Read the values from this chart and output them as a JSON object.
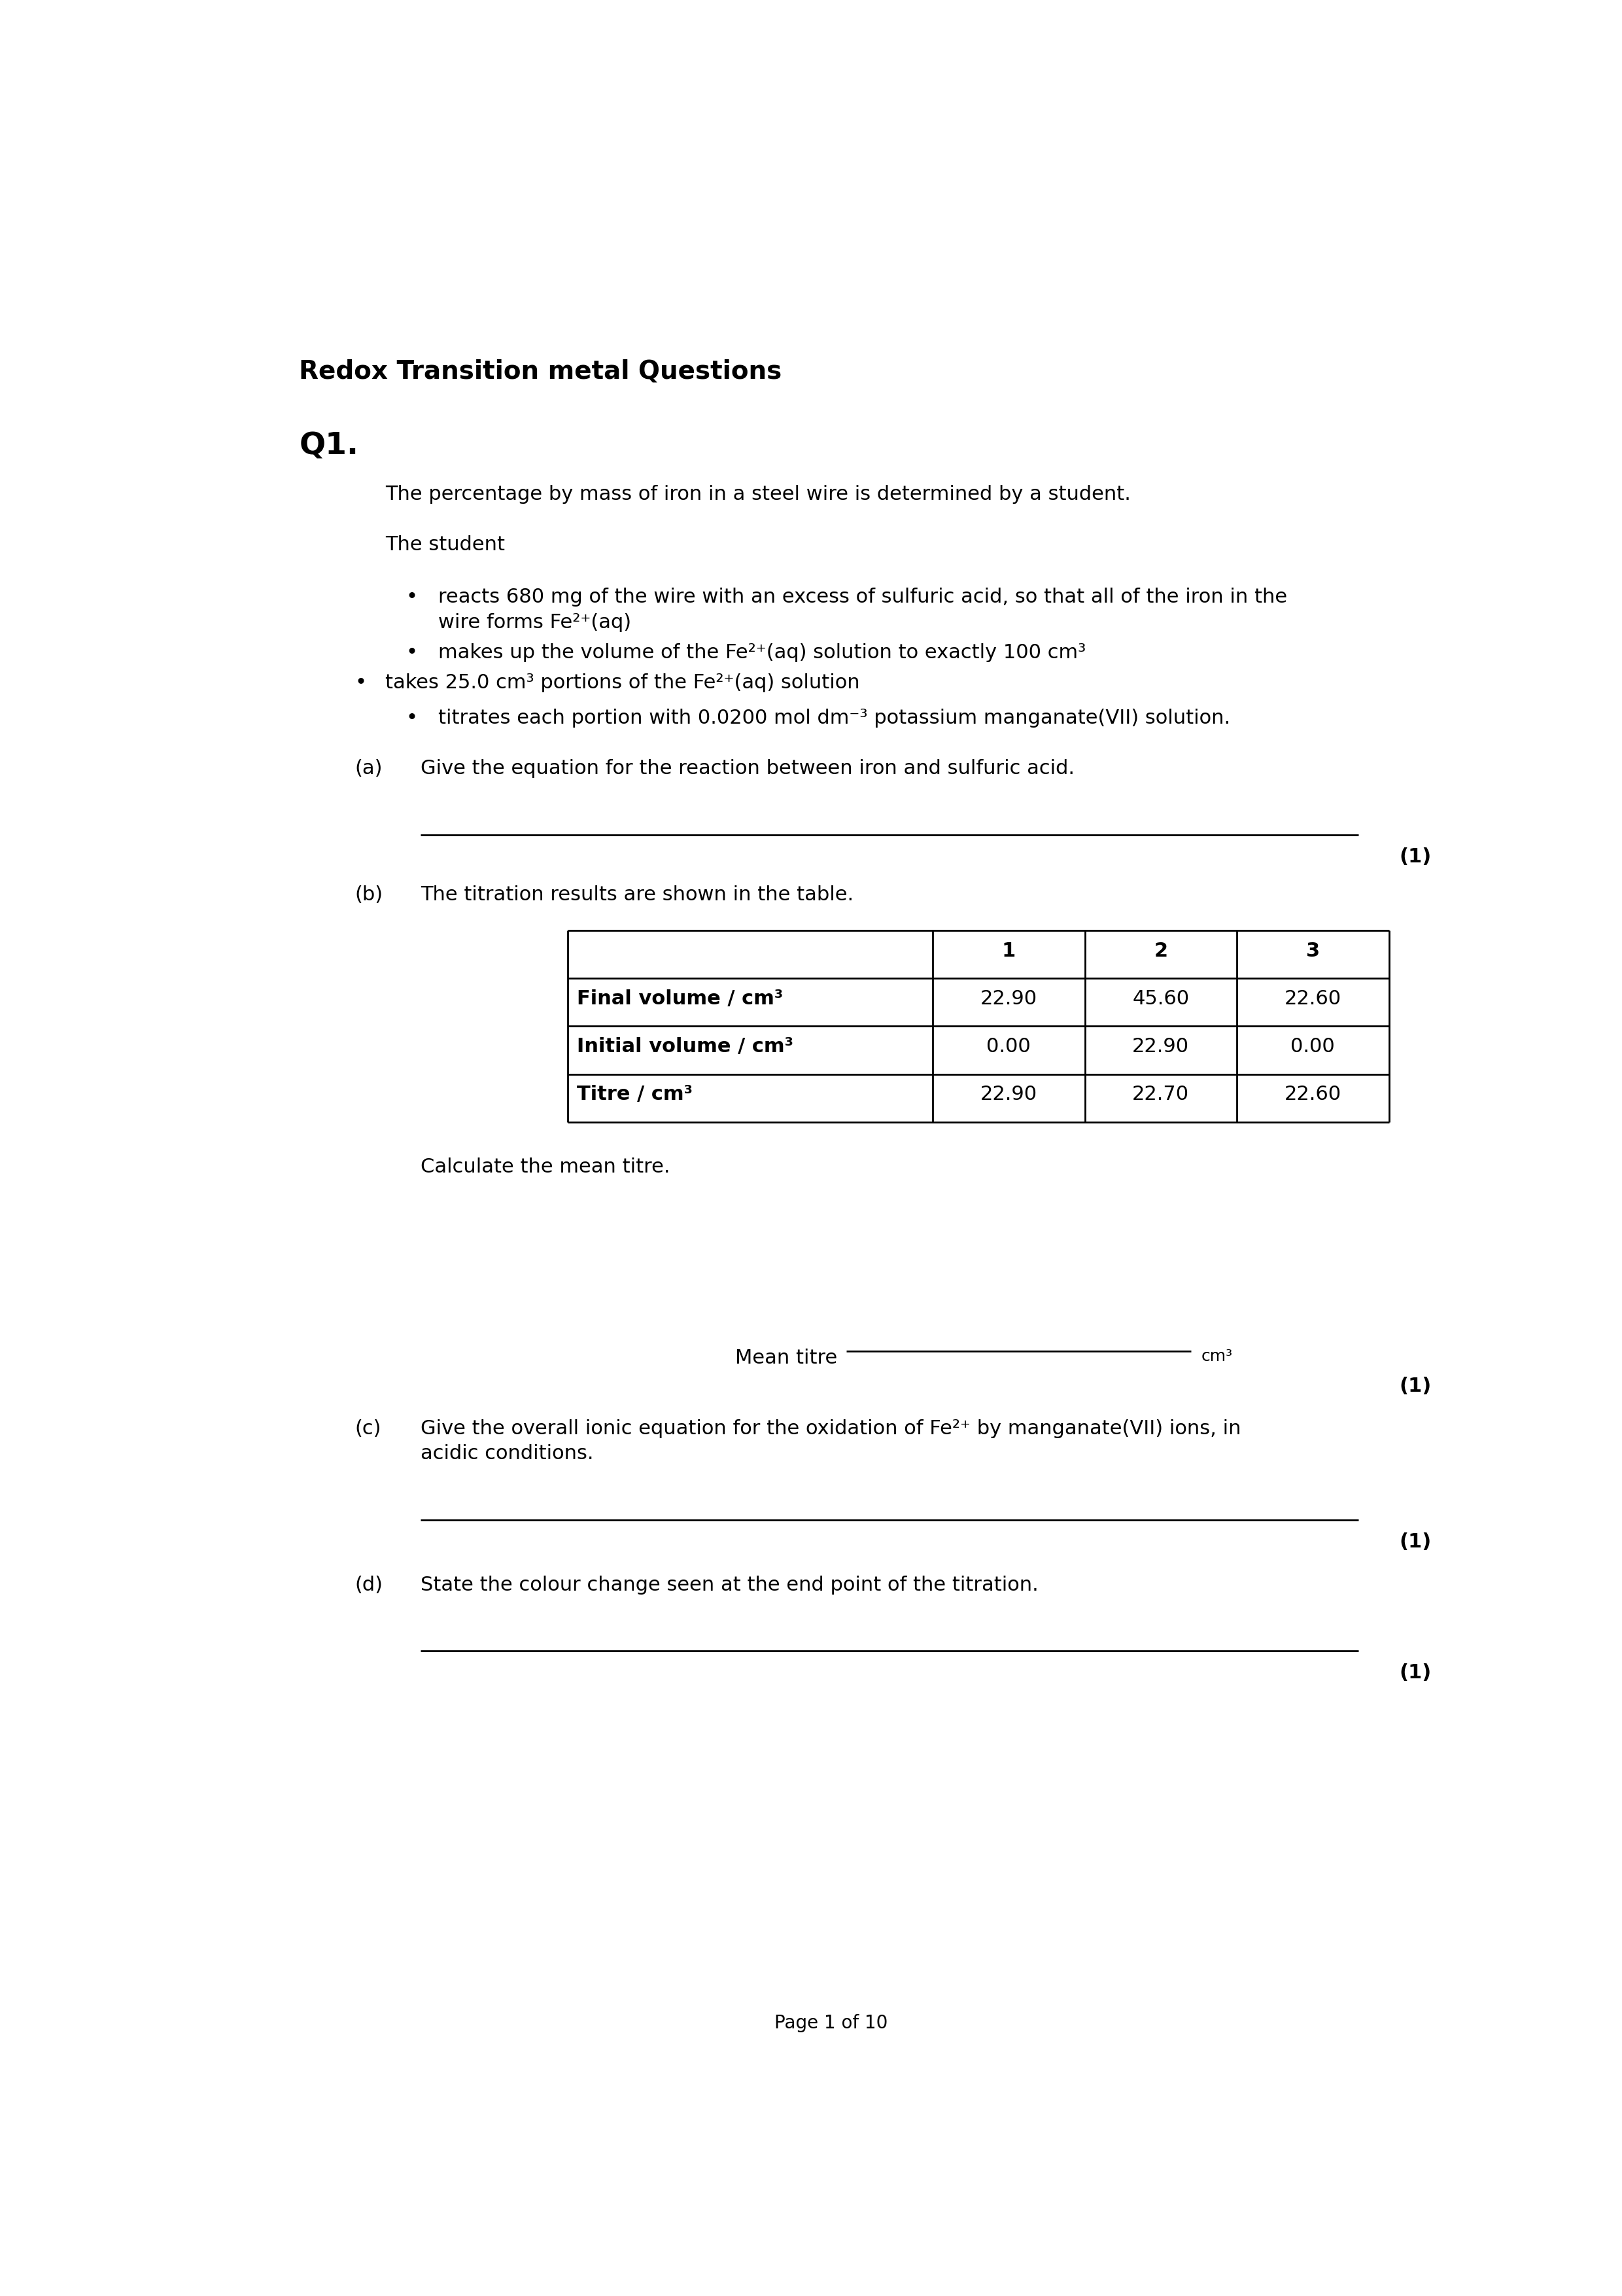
{
  "title": "Redox Transition metal Questions",
  "q1_label": "Q1.",
  "intro_text": "The percentage by mass of iron in a steel wire is determined by a student.",
  "student_text": "The student",
  "bullet1_line1": "reacts 680 mg of the wire with an excess of sulfuric acid, so that all of the iron in the",
  "bullet1_line2": "wire forms Fe²⁺(aq)",
  "bullet2": "makes up the volume of the Fe²⁺(aq) solution to exactly 100 cm³",
  "bullet3": "takes 25.0 cm³ portions of the Fe²⁺(aq) solution",
  "bullet4": "titrates each portion with 0.0200 mol dm⁻³ potassium manganate(VII) solution.",
  "part_a_label": "(a)",
  "part_a_text": "Give the equation for the reaction between iron and sulfuric acid.",
  "mark_1a": "(1)",
  "part_b_label": "(b)",
  "part_b_text": "The titration results are shown in the table.",
  "table_headers": [
    "",
    "1",
    "2",
    "3"
  ],
  "table_row1_label": "Final volume / cm³",
  "table_row2_label": "Initial volume / cm³",
  "table_row3_label": "Titre / cm³",
  "table_row1_vals": [
    "22.90",
    "45.60",
    "22.60"
  ],
  "table_row2_vals": [
    "0.00",
    "22.90",
    "0.00"
  ],
  "table_row3_vals": [
    "22.90",
    "22.70",
    "22.60"
  ],
  "calc_mean_text": "Calculate the mean titre.",
  "mean_titre_label": "Mean titre",
  "mean_titre_unit": "cm³",
  "mark_1b": "(1)",
  "part_c_label": "(c)",
  "part_c_line1": "Give the overall ionic equation for the oxidation of Fe²⁺ by manganate(VII) ions, in",
  "part_c_line2": "acidic conditions.",
  "mark_1c": "(1)",
  "part_d_label": "(d)",
  "part_d_text": "State the colour change seen at the end point of the titration.",
  "mark_1d": "(1)",
  "footer": "Page 1 of 10",
  "bg_color": "#ffffff",
  "text_color": "#000000",
  "fs_title": 28,
  "fs_q": 34,
  "fs_body": 22,
  "fs_footer": 20
}
